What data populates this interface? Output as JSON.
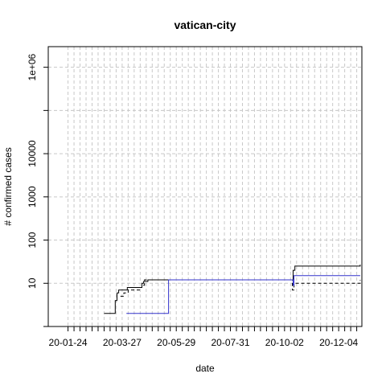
{
  "chart_data": {
    "type": "line",
    "title": "vatican-city",
    "xlabel": "date",
    "ylabel": "# confirmed cases",
    "x_scale": "date",
    "y_scale": "log10",
    "xlim": [
      "2020-01-01",
      "2020-12-31"
    ],
    "ylim": [
      1,
      3000000
    ],
    "grid": true,
    "x_tick_labels": [
      "20-01-24",
      "20-03-27",
      "20-05-29",
      "20-07-31",
      "20-10-02",
      "20-12-04"
    ],
    "x_tick_values": [
      "2020-01-24",
      "2020-03-27",
      "2020-05-29",
      "2020-07-31",
      "2020-10-02",
      "2020-12-04"
    ],
    "y_tick_labels": [
      "10",
      "100",
      "1000",
      "10000",
      "1e+06"
    ],
    "y_tick_values": [
      10,
      100,
      1000,
      10000,
      1000000
    ],
    "series": [
      {
        "color": "#000000",
        "dash": "solid",
        "x": [
          "2020-03-06",
          "2020-03-18",
          "2020-03-19",
          "2020-03-21",
          "2020-03-23",
          "2020-03-27",
          "2020-04-02",
          "2020-04-09",
          "2020-04-19",
          "2020-04-21",
          "2020-04-26",
          "2020-10-10",
          "2020-10-12",
          "2020-10-14",
          "2020-12-29"
        ],
        "y": [
          2,
          2,
          4,
          6,
          7,
          7,
          8,
          8,
          10,
          11,
          12,
          12,
          20,
          25,
          27
        ]
      },
      {
        "color": "#000000",
        "dash": "dashed",
        "x": [
          "2020-03-25",
          "2020-03-29",
          "2020-04-03",
          "2020-04-09",
          "2020-04-17",
          "2020-04-19",
          "2020-04-22",
          "2020-10-09",
          "2020-10-11",
          "2020-10-13",
          "2020-12-29"
        ],
        "y": [
          5,
          6,
          7,
          7,
          8,
          9,
          12,
          12,
          7,
          10,
          12
        ]
      },
      {
        "color": "#3333cc",
        "dash": "solid",
        "x": [
          "2020-04-01",
          "2020-05-19",
          "2020-05-20",
          "2020-10-11",
          "2020-10-12",
          "2020-10-13",
          "2020-12-29"
        ],
        "y": [
          2,
          2,
          12,
          12,
          9,
          15,
          15
        ]
      }
    ]
  }
}
